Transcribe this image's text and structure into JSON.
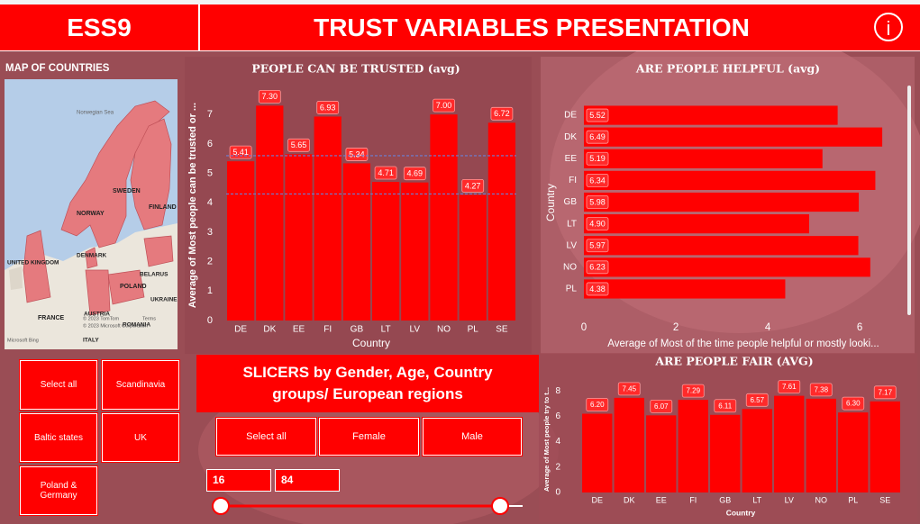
{
  "header": {
    "left_title": "ESS9",
    "title": "TRUST VARIABLES PRESENTATION",
    "info_icon": "i"
  },
  "map": {
    "title": "MAP OF COUNTRIES",
    "labels": [
      "Norwegian Sea",
      "SWEDEN",
      "FINLAND",
      "NORWAY",
      "DENMARK",
      "UNITED KINGDOM",
      "BELARUS",
      "POLAND",
      "UKRAINE",
      "FRANCE",
      "AUSTRIA",
      "ROMANIA",
      "ITALY"
    ],
    "attribution": [
      "© 2023 TomTom",
      "© 2023 Microsoft Corporation",
      "Terms",
      "Microsoft Bing"
    ]
  },
  "slicers": {
    "title": "SLICERS by Gender, Age, Country groups/ European regions",
    "region_buttons": [
      "Select all",
      "Scandinavia",
      "Baltic states",
      "UK",
      "Poland & Germany"
    ],
    "gender_buttons": [
      "Select all",
      "Female",
      "Male"
    ],
    "age_range": [
      16,
      84
    ]
  },
  "chart_data": [
    {
      "type": "bar",
      "orientation": "vertical",
      "title": "PEOPLE CAN BE TRUSTED (avg)",
      "x_label": "Country",
      "y_label": "Average of Most people can be trusted or ...",
      "categories": [
        "DE",
        "DK",
        "EE",
        "FI",
        "GB",
        "LT",
        "LV",
        "NO",
        "PL",
        "SE"
      ],
      "values": [
        5.41,
        7.3,
        5.65,
        6.93,
        5.34,
        4.71,
        4.69,
        7.0,
        4.27,
        6.72
      ],
      "value_labels": [
        "5.41",
        "7.30",
        "5.65",
        "6.93",
        "5.34",
        "4.71",
        "4.69",
        "7.00",
        "4.27",
        "6.72"
      ],
      "color": "#ff0000",
      "ylim": [
        0,
        7.8
      ],
      "yticks": [
        0,
        1,
        2,
        3,
        4,
        5,
        6,
        7
      ],
      "reference_lines": [
        5.6,
        4.3
      ]
    },
    {
      "type": "bar",
      "orientation": "horizontal",
      "title": "ARE PEOPLE HELPFUL (avg)",
      "x_label": "Average of Most of the time people helpful or mostly looki...",
      "y_label": "Country",
      "categories": [
        "DE",
        "DK",
        "EE",
        "FI",
        "GB",
        "LT",
        "LV",
        "NO",
        "PL"
      ],
      "values": [
        5.52,
        6.49,
        5.19,
        6.34,
        5.98,
        4.9,
        5.97,
        6.23,
        4.38
      ],
      "value_labels": [
        "5.52",
        "6.49",
        "5.19",
        "6.34",
        "5.98",
        "4.90",
        "5.97",
        "6.23",
        "4.38"
      ],
      "color": "#ff0000",
      "xlim": [
        0,
        6.9
      ],
      "xticks": [
        0,
        2,
        4,
        6
      ]
    },
    {
      "type": "bar",
      "orientation": "vertical",
      "title": "ARE PEOPLE FAIR (AVG)",
      "x_label": "Country",
      "y_label": "Average of Most people try to t...",
      "categories": [
        "DE",
        "DK",
        "EE",
        "FI",
        "GB",
        "LT",
        "LV",
        "NO",
        "PL",
        "SE"
      ],
      "values": [
        6.2,
        7.45,
        6.07,
        7.29,
        6.11,
        6.57,
        7.61,
        7.38,
        6.3,
        7.17
      ],
      "value_labels": [
        "6.20",
        "7.45",
        "6.07",
        "7.29",
        "6.11",
        "6.57",
        "7.61",
        "7.38",
        "6.30",
        "7.17"
      ],
      "color": "#ff0000",
      "ylim": [
        0,
        9
      ],
      "yticks": [
        0,
        2,
        4,
        6,
        8
      ]
    }
  ]
}
